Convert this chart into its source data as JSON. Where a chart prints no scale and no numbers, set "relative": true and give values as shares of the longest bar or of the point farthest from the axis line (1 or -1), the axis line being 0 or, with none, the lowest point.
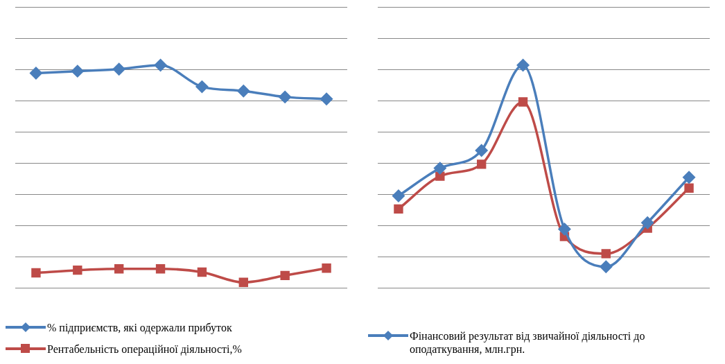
{
  "chart_data": [
    {
      "type": "line",
      "relative": true,
      "grid": "y",
      "legend": "bottom",
      "categories": [
        null,
        null,
        null,
        null,
        null,
        null,
        null,
        null
      ],
      "series": [
        {
          "name": "% підприємств, які одержали прибуток",
          "color": "#4a7ebb",
          "marker": "diamond",
          "values": [
            0.964,
            0.973,
            0.982,
            1,
            0.903,
            0.884,
            0.857,
            0.848
          ]
        },
        {
          "name": "Рентабельність  операційної діяльності,%",
          "color": "#be4b48",
          "marker": "square",
          "values": [
            0.067,
            0.079,
            0.085,
            0.085,
            0.07,
            0.024,
            0.055,
            0.088
          ]
        }
      ]
    },
    {
      "type": "line",
      "relative": true,
      "grid": "y",
      "legend": "bottom",
      "categories": [
        null,
        null,
        null,
        null,
        null,
        null,
        null,
        null
      ],
      "series": [
        {
          "name": "Фінансовий результат від звичайної діяльності до оподаткування, млн.грн.",
          "color": "#4a7ebb",
          "marker": "diamond",
          "values": [
            0.413,
            0.537,
            0.617,
            1,
            0.263,
            0.094,
            0.292,
            0.496
          ]
        },
        {
          "color": "#be4b48",
          "marker": "square",
          "values": [
            0.354,
            0.501,
            0.555,
            0.835,
            0.23,
            0.153,
            0.268,
            0.448
          ]
        }
      ]
    }
  ]
}
